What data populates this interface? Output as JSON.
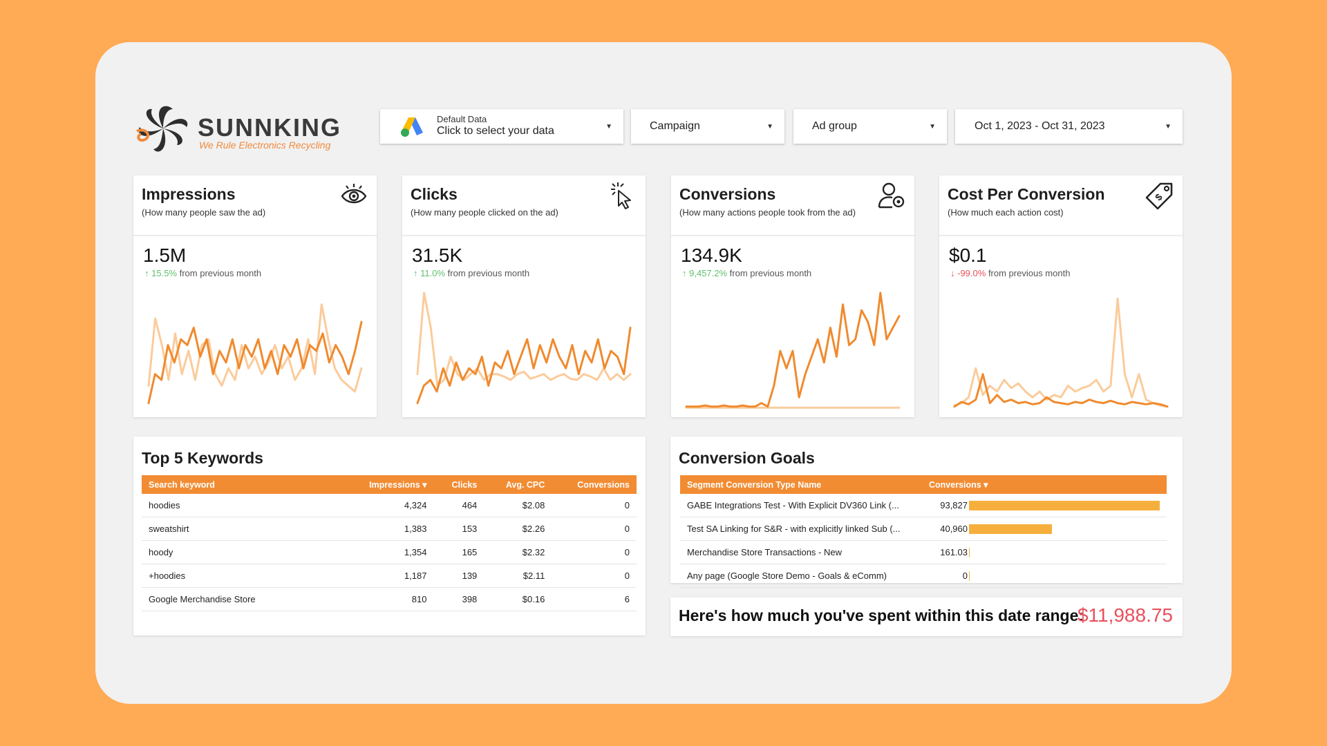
{
  "brand": {
    "name": "SUNNKING",
    "tagline": "We Rule Electronics Recycling"
  },
  "controls": {
    "data_source": {
      "top": "Default Data",
      "bottom": "Click to select your data"
    },
    "campaign": "Campaign",
    "ad_group": "Ad group",
    "date_range": "Oct 1, 2023 - Oct 31, 2023"
  },
  "kpis": [
    {
      "title": "Impressions",
      "subtitle": "(How many people saw the ad)",
      "value": "1.5M",
      "arrow": "↑",
      "delta": "15.5%",
      "direction": "up",
      "delta_text": " from previous month",
      "icon": "eye-icon"
    },
    {
      "title": "Clicks",
      "subtitle": "(How many people clicked on the ad)",
      "value": "31.5K",
      "arrow": "↑",
      "delta": "11.0%",
      "direction": "up",
      "delta_text": " from previous month",
      "icon": "cursor-click-icon"
    },
    {
      "title": "Conversions",
      "subtitle": "(How many actions people took from the ad)",
      "value": "134.9K",
      "arrow": "↑",
      "delta": "9,457.2%",
      "direction": "up",
      "delta_text": " from previous month",
      "icon": "user-target-icon"
    },
    {
      "title": "Cost Per Conversion",
      "subtitle": "(How much each action cost)",
      "value": "$0.1",
      "arrow": "↓",
      "delta": "-99.0%",
      "direction": "down",
      "delta_text": " from previous month",
      "icon": "price-tag-icon"
    }
  ],
  "keywords": {
    "title": "Top 5 Keywords",
    "columns": [
      "Search keyword",
      "Impressions ▾",
      "Clicks",
      "Avg. CPC",
      "Conversions"
    ],
    "rows": [
      [
        "hoodies",
        "4,324",
        "464",
        "$2.08",
        "0"
      ],
      [
        "sweatshirt",
        "1,383",
        "153",
        "$2.26",
        "0"
      ],
      [
        "hoody",
        "1,354",
        "165",
        "$2.32",
        "0"
      ],
      [
        "+hoodies",
        "1,187",
        "139",
        "$2.11",
        "0"
      ],
      [
        "Google Merchandise Store",
        "810",
        "398",
        "$0.16",
        "6"
      ]
    ]
  },
  "goals": {
    "title": "Conversion Goals",
    "columns": [
      "Segment Conversion Type Name",
      "Conversions ▾"
    ],
    "rows": [
      {
        "name": "GABE Integrations Test - With Explicit DV360 Link (...",
        "value": "93,827",
        "num": 93827
      },
      {
        "name": "Test SA Linking for S&R - with explicitly linked Sub (...",
        "value": "40,960",
        "num": 40960
      },
      {
        "name": "Merchandise Store Transactions - New",
        "value": "161.03",
        "num": 161.03
      },
      {
        "name": "Any page (Google Store Demo - Goals & eComm)",
        "value": "0",
        "num": 0
      }
    ]
  },
  "spent": {
    "label": "Here's how much you've spent within this date range:",
    "value": "$11,988.75"
  },
  "colors": {
    "accent": "#F28C33",
    "bar": "#F6AF3C",
    "up": "#5fbf6c",
    "down": "#e8505b",
    "line_dark": "#F08A2E",
    "line_light": "#FBCB9B"
  },
  "sparklines": [
    {
      "current": [
        0.05,
        0.3,
        0.25,
        0.55,
        0.4,
        0.6,
        0.55,
        0.7,
        0.45,
        0.6,
        0.3,
        0.5,
        0.4,
        0.6,
        0.35,
        0.55,
        0.45,
        0.6,
        0.35,
        0.5,
        0.3,
        0.55,
        0.45,
        0.6,
        0.35,
        0.55,
        0.5,
        0.65,
        0.4,
        0.55,
        0.45,
        0.3,
        0.5,
        0.75
      ],
      "previous": [
        0.2,
        0.78,
        0.55,
        0.25,
        0.65,
        0.3,
        0.5,
        0.25,
        0.55,
        0.6,
        0.3,
        0.2,
        0.35,
        0.25,
        0.55,
        0.35,
        0.45,
        0.3,
        0.4,
        0.55,
        0.35,
        0.45,
        0.25,
        0.35,
        0.6,
        0.3,
        0.9,
        0.6,
        0.35,
        0.25,
        0.2,
        0.15,
        0.35
      ]
    },
    {
      "current": [
        0.05,
        0.2,
        0.25,
        0.15,
        0.35,
        0.2,
        0.4,
        0.25,
        0.35,
        0.3,
        0.45,
        0.2,
        0.4,
        0.35,
        0.5,
        0.3,
        0.45,
        0.6,
        0.35,
        0.55,
        0.4,
        0.6,
        0.45,
        0.35,
        0.55,
        0.3,
        0.5,
        0.4,
        0.6,
        0.35,
        0.5,
        0.45,
        0.3,
        0.7
      ],
      "previous": [
        0.3,
        1.0,
        0.7,
        0.2,
        0.25,
        0.45,
        0.3,
        0.25,
        0.3,
        0.35,
        0.25,
        0.3,
        0.3,
        0.28,
        0.25,
        0.3,
        0.32,
        0.26,
        0.28,
        0.3,
        0.25,
        0.28,
        0.3,
        0.26,
        0.25,
        0.3,
        0.28,
        0.25,
        0.35,
        0.25,
        0.3,
        0.25,
        0.3
      ]
    },
    {
      "current": [
        0.02,
        0.02,
        0.02,
        0.03,
        0.02,
        0.02,
        0.03,
        0.02,
        0.02,
        0.03,
        0.02,
        0.02,
        0.05,
        0.02,
        0.2,
        0.5,
        0.35,
        0.5,
        0.1,
        0.3,
        0.45,
        0.6,
        0.4,
        0.7,
        0.45,
        0.9,
        0.55,
        0.6,
        0.85,
        0.75,
        0.55,
        1.0,
        0.6,
        0.7,
        0.8
      ],
      "previous": [
        0.01,
        0.01,
        0.01,
        0.01,
        0.01,
        0.01,
        0.01,
        0.01,
        0.01,
        0.01,
        0.01,
        0.01,
        0.01,
        0.01,
        0.01,
        0.01,
        0.01,
        0.01,
        0.01,
        0.01,
        0.01,
        0.01,
        0.01,
        0.01,
        0.01,
        0.01,
        0.01,
        0.01,
        0.01,
        0.01,
        0.01,
        0.01,
        0.01,
        0.01
      ]
    },
    {
      "current": [
        0.02,
        0.06,
        0.04,
        0.08,
        0.3,
        0.05,
        0.12,
        0.06,
        0.08,
        0.05,
        0.06,
        0.04,
        0.05,
        0.1,
        0.06,
        0.05,
        0.04,
        0.06,
        0.05,
        0.08,
        0.06,
        0.05,
        0.07,
        0.05,
        0.04,
        0.06,
        0.05,
        0.04,
        0.05,
        0.04,
        0.02
      ],
      "previous": [
        0.03,
        0.05,
        0.1,
        0.35,
        0.12,
        0.2,
        0.15,
        0.25,
        0.18,
        0.22,
        0.15,
        0.1,
        0.15,
        0.08,
        0.12,
        0.1,
        0.2,
        0.15,
        0.18,
        0.2,
        0.25,
        0.15,
        0.2,
        0.95,
        0.3,
        0.1,
        0.3,
        0.08,
        0.05,
        0.03,
        0.02
      ]
    }
  ]
}
